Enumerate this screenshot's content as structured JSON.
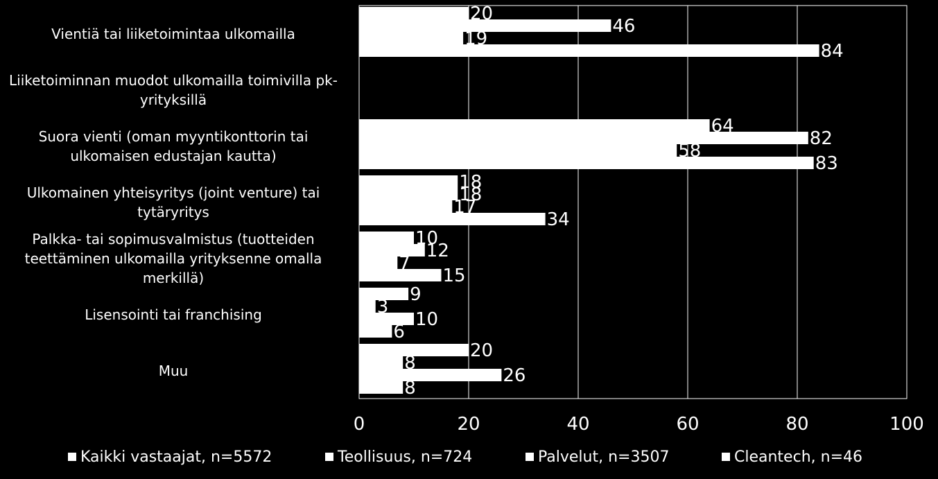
{
  "chart_data": {
    "type": "bar",
    "orientation": "horizontal",
    "categories": [
      [
        "Vientiä tai liiketoimintaa ulkomailla"
      ],
      [
        "Liiketoiminnan muodot ulkomailla toimivilla pk-",
        "yrityksillä"
      ],
      [
        "Suora vienti (oman myyntikonttorin tai",
        "ulkomaisen edustajan kautta)"
      ],
      [
        "Ulkomainen yhteisyritys (joint venture) tai",
        "tytäryritys"
      ],
      [
        "Palkka- tai sopimusvalmistus (tuotteiden",
        "teettäminen ulkomailla yrityksenne omalla",
        "merkillä)"
      ],
      [
        "Lisensointi tai franchising"
      ],
      [
        "Muu"
      ]
    ],
    "series": [
      {
        "name": "Kaikki vastaajat, n=5572",
        "values": [
          20,
          null,
          64,
          18,
          10,
          9,
          20
        ]
      },
      {
        "name": "Teollisuus, n=724",
        "values": [
          46,
          null,
          82,
          18,
          12,
          3,
          8
        ]
      },
      {
        "name": "Palvelut, n=3507",
        "values": [
          19,
          null,
          58,
          17,
          7,
          10,
          26
        ]
      },
      {
        "name": "Cleantech, n=46",
        "values": [
          84,
          null,
          83,
          34,
          15,
          6,
          8
        ]
      }
    ],
    "xlim": [
      0,
      100
    ],
    "xticks": [
      "0",
      "20",
      "40",
      "60",
      "80",
      "100"
    ],
    "grid": true,
    "legend_position": "bottom",
    "title": "",
    "xlabel": "",
    "ylabel": ""
  },
  "colors": {
    "background": "#000000",
    "bars": "#ffffff",
    "grid": "#ffffff",
    "text": "#ffffff"
  }
}
